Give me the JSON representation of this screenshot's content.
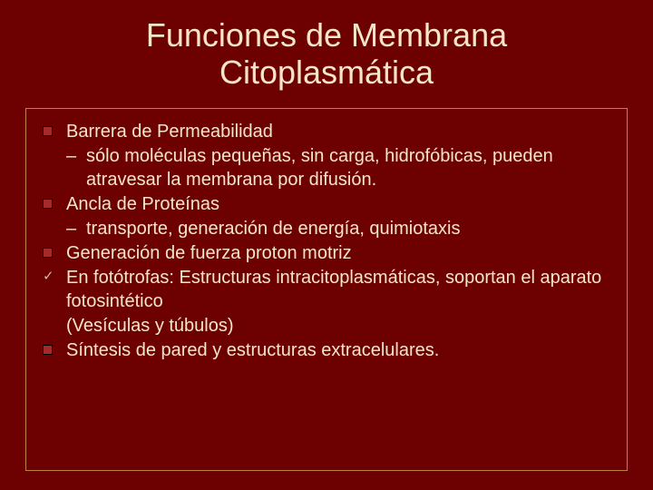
{
  "title_line1": "Funciones de Membrana",
  "title_line2": "Citoplasmática",
  "colors": {
    "background": "#6d0000",
    "text": "#f5e6c8",
    "box_border": "#c08040",
    "square_fill": "#a52a2a",
    "square_border": "#000000"
  },
  "typography": {
    "font_family": "Verdana",
    "title_fontsize": 36,
    "body_fontsize": 20
  },
  "items": [
    {
      "bullet": "square",
      "text": "Barrera de Permeabilidad",
      "sub": [
        {
          "dash": "–",
          "text": "sólo moléculas pequeñas, sin carga, hidrofóbicas, pueden atravesar la membrana por difusión."
        }
      ]
    },
    {
      "bullet": "square",
      "text": "Ancla de Proteínas",
      "sub": [
        {
          "dash": "–",
          "text": "transporte, generación de energía, quimiotaxis"
        }
      ]
    },
    {
      "bullet": "square",
      "text": "Generación de fuerza proton motriz",
      "sub": []
    },
    {
      "bullet": "check",
      "text": "En fotótrofas: Estructuras intracitoplasmáticas, soportan el aparato fotosintético",
      "paren": "(Vesículas y túbulos)",
      "sub": []
    },
    {
      "bullet": "square",
      "text": "Síntesis de pared y estructuras extracelulares.",
      "sub": []
    }
  ]
}
